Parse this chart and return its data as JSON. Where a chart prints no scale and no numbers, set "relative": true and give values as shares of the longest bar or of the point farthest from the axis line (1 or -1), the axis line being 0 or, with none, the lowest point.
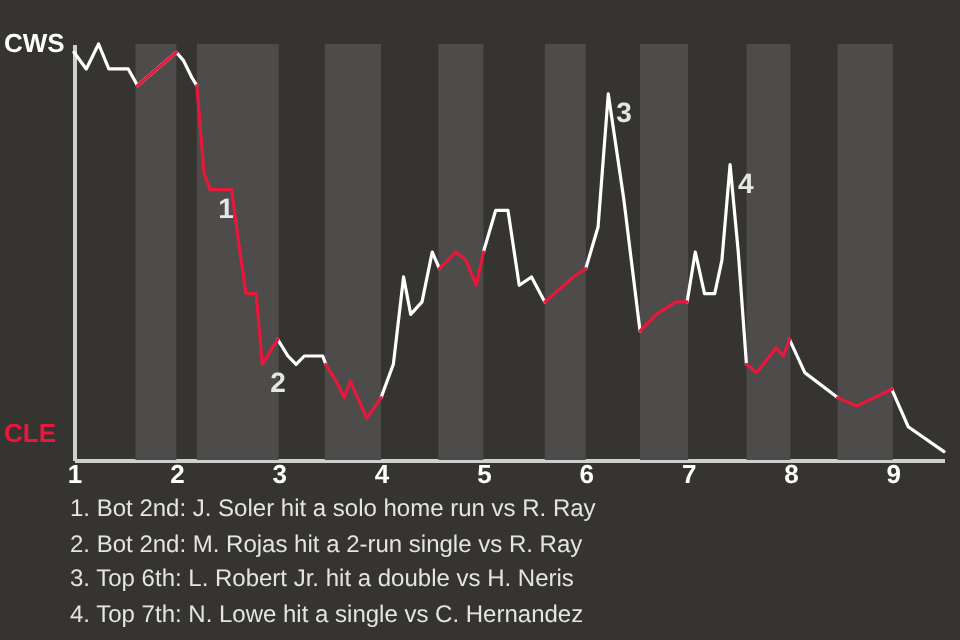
{
  "chart_data": {
    "type": "line",
    "relative": true,
    "x": [
      1.0,
      1.12,
      1.24,
      1.34,
      1.53,
      1.62,
      2.0,
      2.07,
      2.15,
      2.2,
      2.27,
      2.33,
      2.54,
      2.61,
      2.68,
      2.78,
      2.84,
      2.99,
      3.09,
      3.17,
      3.25,
      3.43,
      3.46,
      3.56,
      3.64,
      3.7,
      3.77,
      3.86,
      4.0,
      4.12,
      4.22,
      4.29,
      4.4,
      4.5,
      4.57,
      4.73,
      4.83,
      4.93,
      5.0,
      5.12,
      5.24,
      5.35,
      5.47,
      5.6,
      5.88,
      6.0,
      6.12,
      6.22,
      6.37,
      6.53,
      6.69,
      6.88,
      6.99,
      7.07,
      7.16,
      7.26,
      7.33,
      7.41,
      7.49,
      7.57,
      7.67,
      7.86,
      7.93,
      7.99,
      8.14,
      8.46,
      8.65,
      8.99,
      9.15,
      9.5
    ],
    "series": [
      {
        "color": "#ffffff",
        "values": [
          0.98,
          0.94,
          1,
          0.94,
          0.94,
          0.9,
          0.98,
          0.96,
          0.92,
          0.9,
          null,
          null,
          null,
          null,
          null,
          null,
          null,
          0.29,
          0.25,
          0.23,
          0.25,
          0.25,
          0.23,
          null,
          null,
          null,
          null,
          null,
          0.15,
          0.23,
          0.44,
          0.35,
          0.38,
          0.5,
          0.46,
          null,
          null,
          null,
          0.5,
          0.6,
          0.6,
          0.42,
          0.44,
          0.38,
          null,
          0.46,
          0.56,
          0.88,
          0.63,
          0.31,
          null,
          null,
          0.38,
          0.5,
          0.4,
          0.4,
          0.48,
          0.71,
          0.5,
          0.23,
          null,
          null,
          null,
          0.29,
          0.21,
          0.15,
          null,
          0.17,
          0.08,
          0.02
        ]
      },
      {
        "color": "#e8173c",
        "values": [
          null,
          null,
          null,
          null,
          null,
          0.9,
          0.98,
          null,
          null,
          0.9,
          0.69,
          0.65,
          0.65,
          0.52,
          0.4,
          0.4,
          0.23,
          0.29,
          null,
          null,
          null,
          null,
          0.23,
          0.19,
          0.15,
          0.19,
          0.15,
          0.1,
          0.15,
          null,
          null,
          null,
          null,
          null,
          0.46,
          0.5,
          0.48,
          0.42,
          0.5,
          null,
          null,
          null,
          null,
          0.38,
          0.44,
          0.46,
          null,
          null,
          null,
          0.31,
          0.35,
          0.38,
          0.38,
          null,
          null,
          null,
          null,
          null,
          null,
          0.23,
          0.21,
          0.27,
          0.25,
          0.29,
          null,
          0.15,
          0.13,
          0.17,
          null,
          null
        ]
      }
    ],
    "xlim": [
      1,
      9.5
    ],
    "xticks": [
      1,
      2,
      3,
      4,
      5,
      6,
      7,
      8,
      9
    ],
    "bands": [
      {
        "axis": "x",
        "from": 1.6,
        "to": 2,
        "color": "#4d4c4a"
      },
      {
        "axis": "x",
        "from": 2.2,
        "to": 3,
        "color": "#4d4c4a"
      },
      {
        "axis": "x",
        "from": 3.45,
        "to": 4,
        "color": "#4d4c4a"
      },
      {
        "axis": "x",
        "from": 4.56,
        "to": 5,
        "color": "#4d4c4a"
      },
      {
        "axis": "x",
        "from": 5.6,
        "to": 6,
        "color": "#4d4c4a"
      },
      {
        "axis": "x",
        "from": 6.53,
        "to": 7,
        "color": "#4d4c4a"
      },
      {
        "axis": "x",
        "from": 7.57,
        "to": 8,
        "color": "#4d4c4a"
      },
      {
        "axis": "x",
        "from": 8.46,
        "to": 9,
        "color": "#4d4c4a"
      }
    ],
    "annotations": [
      "CWS",
      "CLE",
      {
        "text": "1",
        "x": 2.33,
        "y": 0.65
      },
      {
        "text": "2",
        "x": 2.84,
        "y": 0.23
      },
      {
        "text": "3",
        "x": 6.22,
        "y": 0.88
      },
      {
        "text": "4",
        "x": 7.41,
        "y": 0.71
      },
      "1. Bot 2nd: J. Soler hit a solo home run vs R. Ray",
      "2. Bot 2nd: M. Rojas hit a 2-run single vs R. Ray",
      "3. Top 6th: L. Robert Jr. hit a double vs H. Neris",
      "4. Top 7th: N. Lowe hit a single vs C. Hernandez"
    ]
  }
}
